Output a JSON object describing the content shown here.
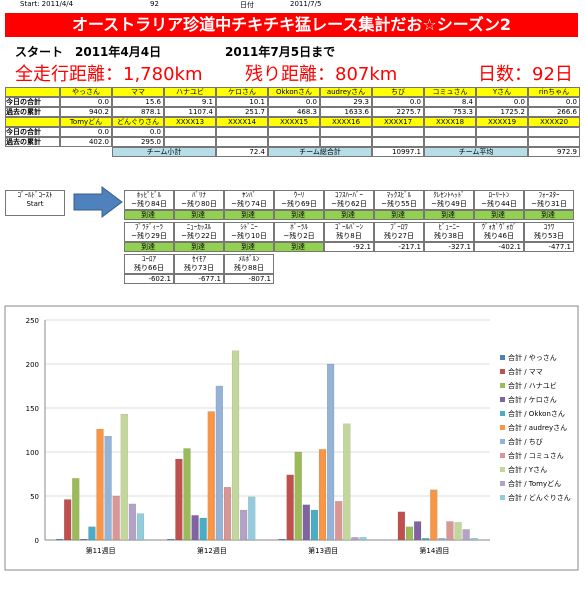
{
  "header": {
    "start": "Start:  2011/4/4",
    "count": "92",
    "date_label": "日付",
    "date": "2011/7/5"
  },
  "title": "オーストラリア珍道中チキチキ猛レース集計だお☆シーズン2",
  "summary": {
    "start": "スタート　2011年4月4日",
    "until": "2011年7月5日まで",
    "total": "全走行距離：1,780km",
    "remaining": "残り距離：807km",
    "days": "日数：92日"
  },
  "table": {
    "groups": [
      {
        "names": [
          "やっさん",
          "ママ",
          "ハナユビ",
          "ケロさん",
          "Okkonさん",
          "audreyさん",
          "ちび",
          "コミュさん",
          "Yさん",
          "rinちゃん"
        ],
        "rows": [
          {
            "label": "今日の合計",
            "values": [
              "0.0",
              "15.6",
              "9.1",
              "10.1",
              "0.0",
              "29.3",
              "0.0",
              "8.4",
              "0.0",
              "0.0"
            ]
          },
          {
            "label": "過去の累計",
            "values": [
              "940.2",
              "878.1",
              "1107.4",
              "251.7",
              "468.3",
              "1633.6",
              "2275.7",
              "753.3",
              "1725.2",
              "266.6"
            ]
          }
        ]
      },
      {
        "names": [
          "Tomyどん",
          "どんぐりさん",
          "XXXX13",
          "XXXX14",
          "XXXX15",
          "XXXX16",
          "XXXX17",
          "XXXX18",
          "XXXX19",
          "XXXX20"
        ],
        "rows": [
          {
            "label": "今日の合計",
            "values": [
              "0.0",
              "0.0"
            ]
          },
          {
            "label": "過去の累計",
            "values": [
              "402.0",
              "295.0"
            ]
          }
        ]
      }
    ],
    "totals": [
      {
        "label": "チーム小計",
        "value": "72.4"
      },
      {
        "label": "チーム総合計",
        "value": "10997.1"
      },
      {
        "label": "チーム平均",
        "value": "972.9"
      }
    ]
  },
  "route": {
    "start": "ｺﾞｰﾙﾄﾞｺｰｽﾄ",
    "start_sub": "Start",
    "cities": [
      {
        "name": "ﾎｯﾋﾟﾋﾞﾙ",
        "remain": "~残り84日",
        "status": "到達"
      },
      {
        "name": "ﾊﾞﾘﾅ",
        "remain": "~残り80日",
        "status": "到達"
      },
      {
        "name": "ﾔﾝﾊﾞ",
        "remain": "~残り74日",
        "status": "到達"
      },
      {
        "name": "ｳｰﾘ",
        "remain": "~残り69日",
        "status": "到達"
      },
      {
        "name": "ｺﾌｽﾊｰﾊﾞｰ",
        "remain": "~残り62日",
        "status": "到達"
      },
      {
        "name": "ﾏｯｸｽﾋﾞﾙ",
        "remain": "~残り55日",
        "status": "到達"
      },
      {
        "name": "ｸﾚｾﾝﾄﾍｯﾄﾞ",
        "remain": "~残り49日",
        "status": "到達"
      },
      {
        "name": "ﾛｰﾘｰﾄﾝ",
        "remain": "~残り44日",
        "status": "到達"
      },
      {
        "name": "ﾌｫｰｽﾀｰ",
        "remain": "~残り31日",
        "status": "到達"
      },
      {
        "name": "ﾌﾞﾗﾃﾞｨｰﾗ",
        "remain": "~残り29日",
        "status": "到達"
      },
      {
        "name": "ﾆｭｰｶｯｽﾙ",
        "remain": "~残り22日",
        "status": "到達"
      },
      {
        "name": "ｼﾄﾞﾆｰ",
        "remain": "~残り10日",
        "status": "到達"
      },
      {
        "name": "ﾎﾞｰﾗﾙ",
        "remain": "~残り2日",
        "status": "到達"
      },
      {
        "name": "ｺﾞｰﾙﾊﾞｰﾝ",
        "remain": "残り8日",
        "status": "-92.1"
      },
      {
        "name": "ﾌﾞｰﾛﾜ",
        "remain": "残り27日",
        "status": "-217.1"
      },
      {
        "name": "ﾋﾞｭｰﾆｰ",
        "remain": "残り38日",
        "status": "-327.1"
      },
      {
        "name": "ｳﾞｫｶﾞｳﾞｫｶﾞ",
        "remain": "残り46日",
        "status": "-402.1"
      },
      {
        "name": "ｺﾗﾜ",
        "remain": "残り53日",
        "status": "-477.1"
      },
      {
        "name": "ﾕｰﾛｱ",
        "remain": "残り66日",
        "status": "-602.1"
      },
      {
        "name": "ｾｲﾓｱ",
        "remain": "残り73日",
        "status": "-677.1"
      },
      {
        "name": "ﾒﾙﾎﾞﾙﾝ",
        "remain": "残り88日",
        "status": "-807.1"
      }
    ]
  },
  "chart_data": {
    "type": "bar",
    "categories": [
      "第11週目",
      "第12週目",
      "第13週目",
      "第14週目"
    ],
    "ylim": [
      0,
      250
    ],
    "yticks": [
      0,
      50,
      100,
      150,
      200,
      250
    ],
    "grid": true,
    "series": [
      {
        "name": "合計 / やっさん",
        "color": "#4f81bd",
        "values": [
          1,
          1,
          1,
          0
        ]
      },
      {
        "name": "合計 / ママ",
        "color": "#c0504d",
        "values": [
          46,
          92,
          74,
          32
        ]
      },
      {
        "name": "合計 / ハナユビ",
        "color": "#9bbb59",
        "values": [
          70,
          104,
          100,
          15
        ]
      },
      {
        "name": "合計 / ケロさん",
        "color": "#8064a2",
        "values": [
          1,
          28,
          40,
          21
        ]
      },
      {
        "name": "合計 / Okkonさん",
        "color": "#4bacc6",
        "values": [
          15,
          25,
          34,
          2
        ]
      },
      {
        "name": "合計 / audreyさん",
        "color": "#f79646",
        "values": [
          126,
          146,
          103,
          57
        ]
      },
      {
        "name": "合計 / ちび",
        "color": "#95b3d7",
        "values": [
          118,
          175,
          200,
          2
        ]
      },
      {
        "name": "合計 / コミュさん",
        "color": "#d99694",
        "values": [
          50,
          60,
          44,
          21
        ]
      },
      {
        "name": "合計 / Yさん",
        "color": "#c3d69b",
        "values": [
          143,
          215,
          132,
          20
        ]
      },
      {
        "name": "合計 / Tomyどん",
        "color": "#b3a2c7",
        "values": [
          41,
          34,
          3,
          12
        ]
      },
      {
        "name": "合計 / どんぐりさん",
        "color": "#93cddd",
        "values": [
          30,
          49,
          3,
          2
        ]
      }
    ]
  }
}
